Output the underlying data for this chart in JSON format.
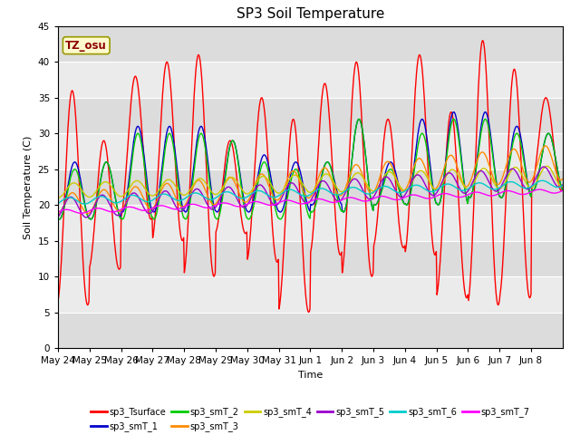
{
  "title": "SP3 Soil Temperature",
  "xlabel": "Time",
  "ylabel": "Soil Temperature (C)",
  "ylim": [
    0,
    45
  ],
  "yticks": [
    0,
    5,
    10,
    15,
    20,
    25,
    30,
    35,
    40,
    45
  ],
  "annotation_text": "TZ_osu",
  "annotation_color": "#8B0000",
  "annotation_bg": "#FFFACD",
  "plot_bg": "#DCDCDC",
  "series_colors": {
    "sp3_Tsurface": "#FF0000",
    "sp3_smT_1": "#0000CC",
    "sp3_smT_2": "#00CC00",
    "sp3_smT_3": "#FF8C00",
    "sp3_smT_4": "#CCCC00",
    "sp3_smT_5": "#9900CC",
    "sp3_smT_6": "#00CCCC",
    "sp3_smT_7": "#FF00FF"
  },
  "x_labels": [
    "May 24",
    "May 25",
    "May 26",
    "May 27",
    "May 28",
    "May 29",
    "May 30",
    "May 31",
    "Jun 1",
    "Jun 2",
    "Jun 3",
    "Jun 4",
    "Jun 5",
    "Jun 6",
    "Jun 7",
    "Jun 8"
  ]
}
